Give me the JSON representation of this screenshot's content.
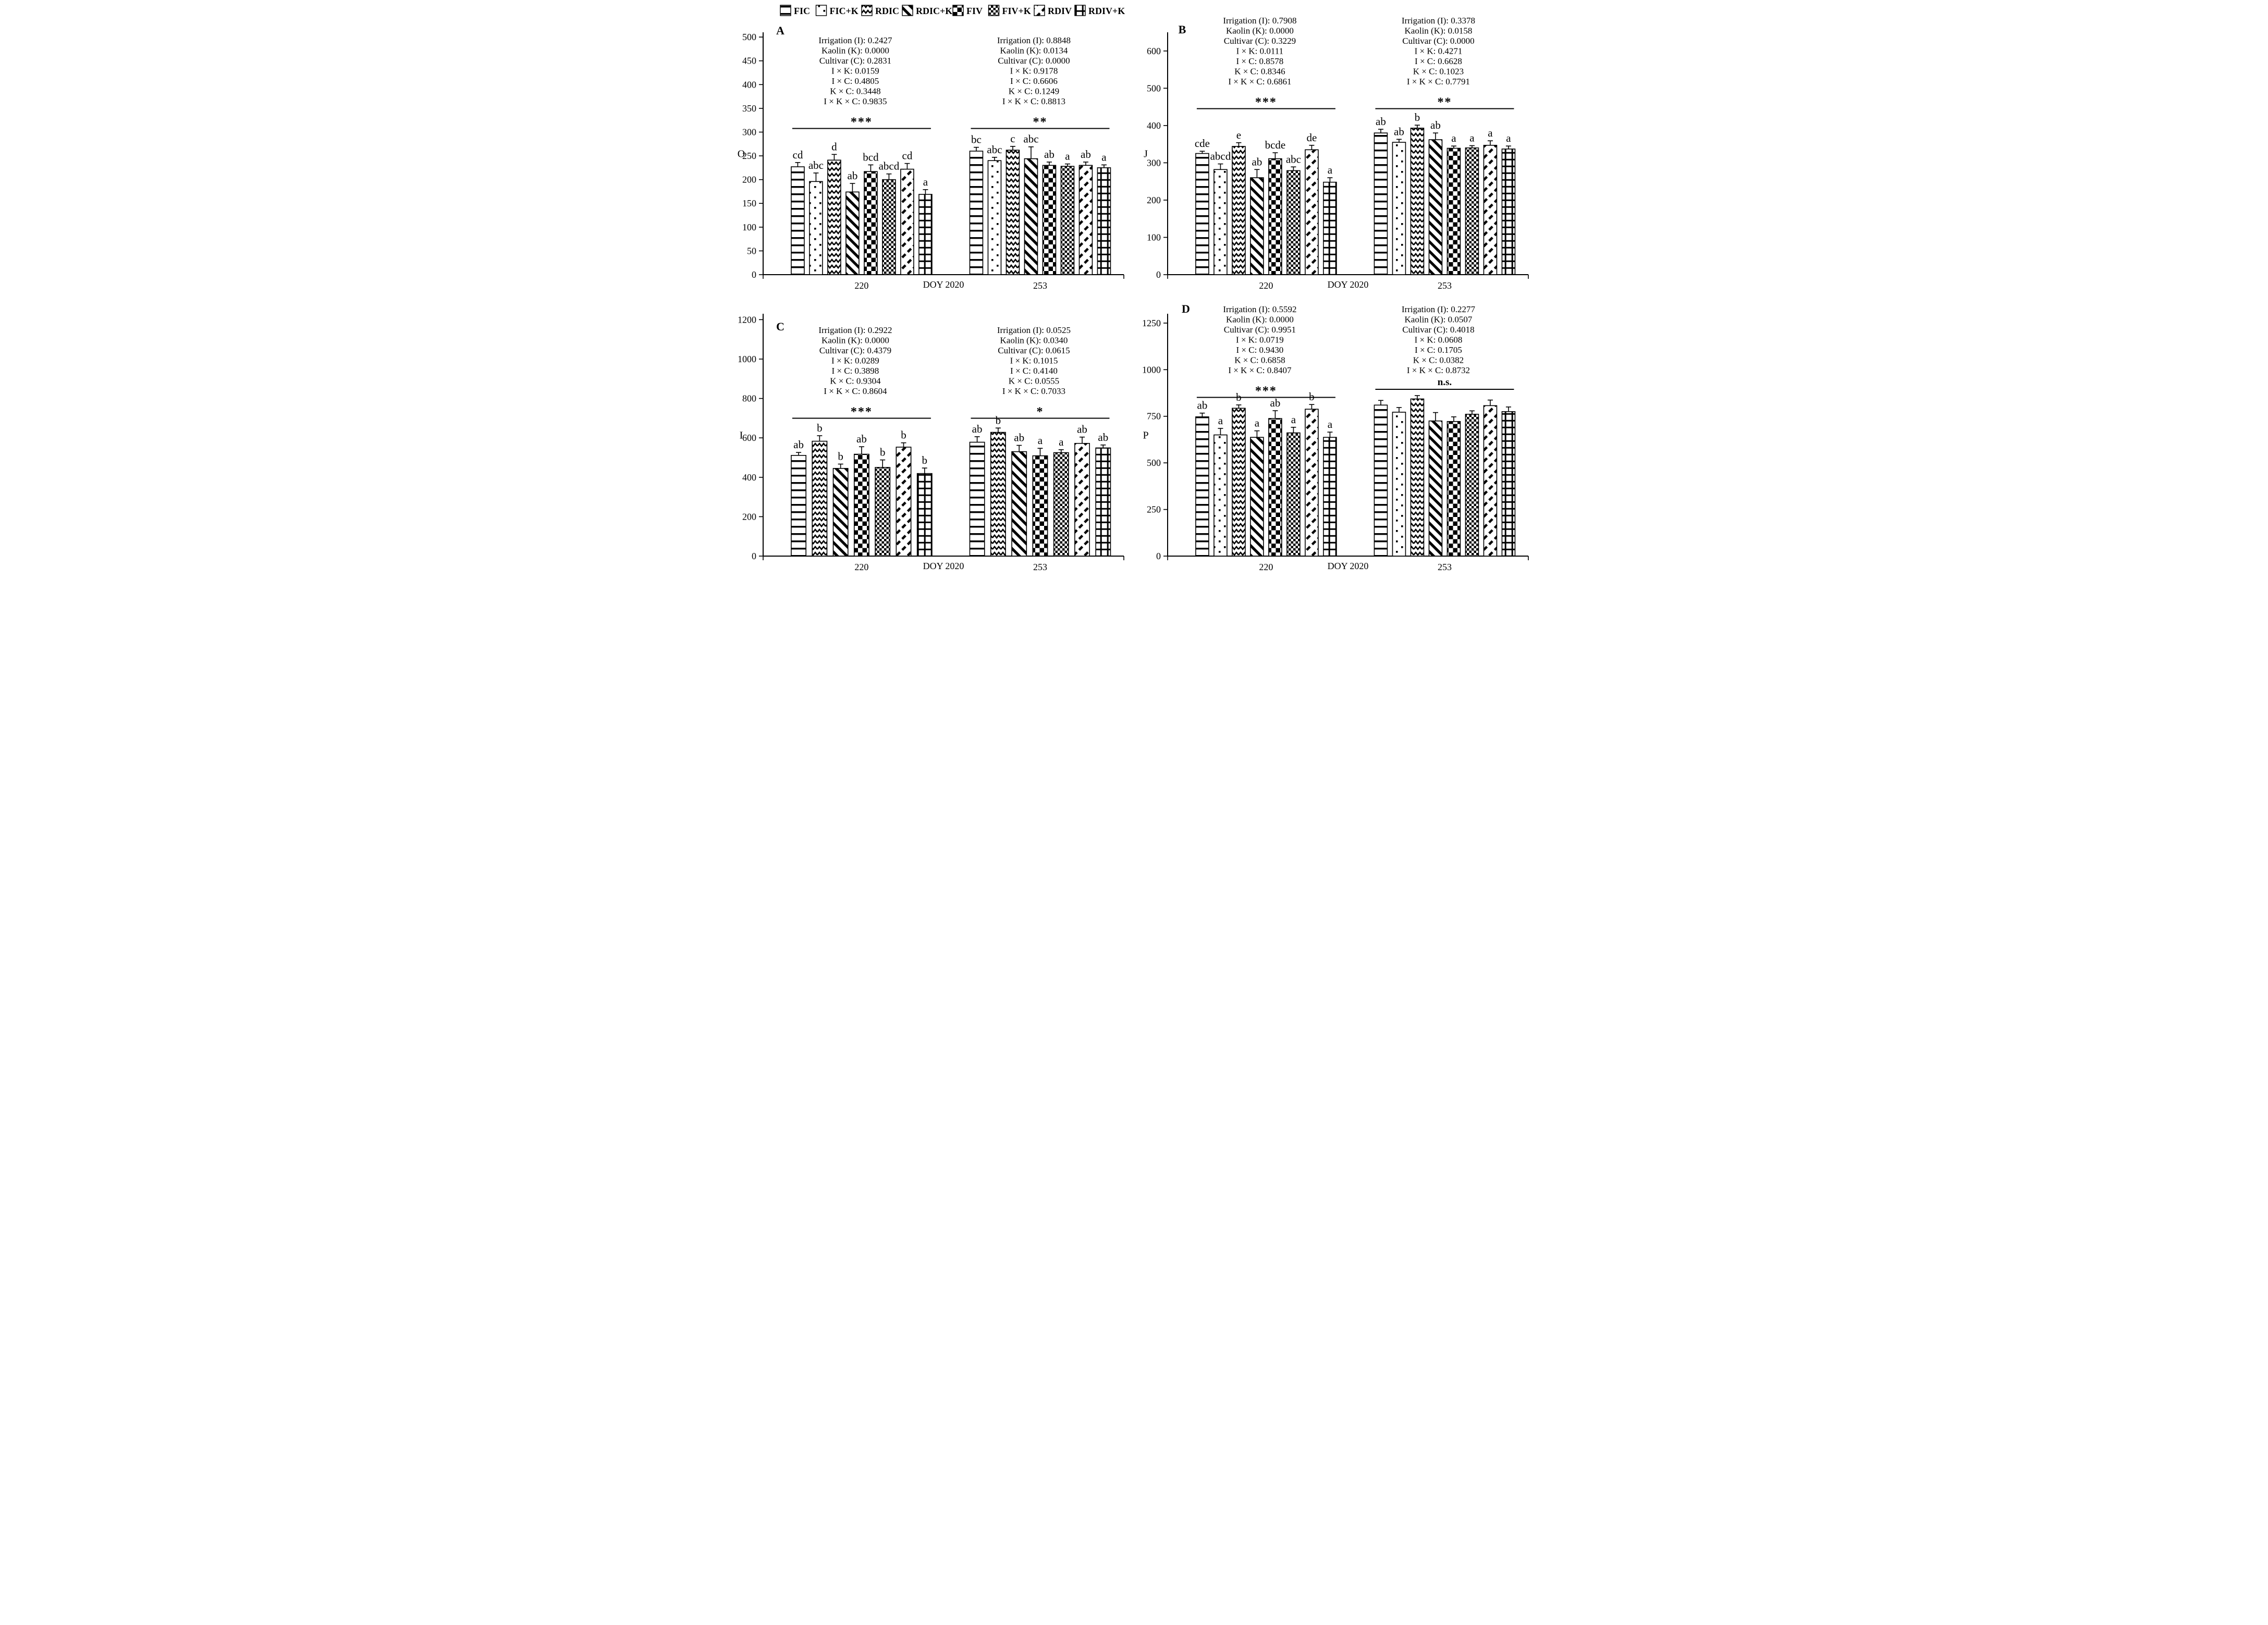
{
  "figure": {
    "x_axis_title": "DOY 2020",
    "group_labels": [
      "220",
      "253"
    ]
  },
  "legend": {
    "items": [
      {
        "label": "FIC",
        "pattern": "hlines"
      },
      {
        "label": "FIC+K",
        "pattern": "dots"
      },
      {
        "label": "RDIC",
        "pattern": "chevron"
      },
      {
        "label": "RDIC+K",
        "pattern": "diag"
      },
      {
        "label": "FIV",
        "pattern": "checker"
      },
      {
        "label": "FIV+K",
        "pattern": "finecheck"
      },
      {
        "label": "RDIV",
        "pattern": "diagdash"
      },
      {
        "label": "RDIV+K",
        "pattern": "grid"
      }
    ]
  },
  "chart_data": [
    {
      "type": "bar",
      "panel": "A",
      "ylabel": "O",
      "ymax_tick": 500,
      "ytick_step": 50,
      "axis_max": 510,
      "categories": [
        "220",
        "253"
      ],
      "x_axis_label": "DOY 2020",
      "groups": [
        {
          "category": "220",
          "significance": "***",
          "stats_lines": [
            "Irrigation (I): 0.2427",
            "Kaolin (K): 0.0000",
            "Cultivar (C): 0.2831",
            "I × K: 0.0159",
            "I × C: 0.4805",
            "K × C: 0.3448",
            "I × K × C: 0.9835"
          ],
          "bars": [
            {
              "treatment": "FIC",
              "pattern": "hlines",
              "value": 227,
              "error": 9,
              "letter": "cd"
            },
            {
              "treatment": "FIC+K",
              "pattern": "dots",
              "value": 196,
              "error": 18,
              "letter": "abc"
            },
            {
              "treatment": "RDIC",
              "pattern": "chevron",
              "value": 241,
              "error": 12,
              "letter": "d"
            },
            {
              "treatment": "RDIC+K",
              "pattern": "diag",
              "value": 174,
              "error": 18,
              "letter": "ab"
            },
            {
              "treatment": "FIV",
              "pattern": "checker",
              "value": 217,
              "error": 14,
              "letter": "bcd"
            },
            {
              "treatment": "FIV+K",
              "pattern": "finecheck",
              "value": 200,
              "error": 12,
              "letter": "abcd"
            },
            {
              "treatment": "RDIV",
              "pattern": "diagdash",
              "value": 222,
              "error": 12,
              "letter": "cd"
            },
            {
              "treatment": "RDIV+K",
              "pattern": "grid",
              "value": 169,
              "error": 10,
              "letter": "a"
            }
          ]
        },
        {
          "category": "253",
          "significance": "**",
          "stats_lines": [
            "Irrigation (I): 0.8848",
            "Kaolin (K): 0.0134",
            "Cultivar (C): 0.0000",
            "I × K: 0.9178",
            "I × C: 0.6606",
            "K × C: 0.1249",
            "I × K × C: 0.8813"
          ],
          "bars": [
            {
              "treatment": "FIC",
              "pattern": "hlines",
              "value": 260,
              "error": 8,
              "letter": "bc"
            },
            {
              "treatment": "FIC+K",
              "pattern": "dots",
              "value": 240,
              "error": 7,
              "letter": "abc"
            },
            {
              "treatment": "RDIC",
              "pattern": "chevron",
              "value": 262,
              "error": 8,
              "letter": "c"
            },
            {
              "treatment": "RDIC+K",
              "pattern": "diag",
              "value": 244,
              "error": 25,
              "letter": "abc"
            },
            {
              "treatment": "FIV",
              "pattern": "checker",
              "value": 230,
              "error": 7,
              "letter": "ab"
            },
            {
              "treatment": "FIV+K",
              "pattern": "finecheck",
              "value": 228,
              "error": 5,
              "letter": "a"
            },
            {
              "treatment": "RDIV",
              "pattern": "diagdash",
              "value": 230,
              "error": 7,
              "letter": "ab"
            },
            {
              "treatment": "RDIV+K",
              "pattern": "grid",
              "value": 225,
              "error": 6,
              "letter": "a"
            }
          ]
        }
      ]
    },
    {
      "type": "bar",
      "panel": "B",
      "ylabel": "J",
      "ymax_tick": 600,
      "ytick_step": 100,
      "axis_max": 650,
      "categories": [
        "220",
        "253"
      ],
      "x_axis_label": "DOY 2020",
      "groups": [
        {
          "category": "220",
          "significance": "***",
          "stats_lines": [
            "Irrigation (I): 0.7908",
            "Kaolin (K): 0.0000",
            "Cultivar (C): 0.3229",
            "I × K: 0.0111",
            "I × C: 0.8578",
            "K × C: 0.8346",
            "I × K × C: 0.6861"
          ],
          "bars": [
            {
              "treatment": "FIC",
              "pattern": "hlines",
              "value": 325,
              "error": 6,
              "letter": "cde"
            },
            {
              "treatment": "FIC+K",
              "pattern": "dots",
              "value": 282,
              "error": 15,
              "letter": "abcd"
            },
            {
              "treatment": "RDIC",
              "pattern": "chevron",
              "value": 344,
              "error": 10,
              "letter": "e"
            },
            {
              "treatment": "RDIC+K",
              "pattern": "diag",
              "value": 260,
              "error": 22,
              "letter": "ab"
            },
            {
              "treatment": "FIV",
              "pattern": "checker",
              "value": 311,
              "error": 16,
              "letter": "bcde"
            },
            {
              "treatment": "FIV+K",
              "pattern": "finecheck",
              "value": 279,
              "error": 10,
              "letter": "abc"
            },
            {
              "treatment": "RDIV",
              "pattern": "diagdash",
              "value": 335,
              "error": 12,
              "letter": "de"
            },
            {
              "treatment": "RDIV+K",
              "pattern": "grid",
              "value": 248,
              "error": 12,
              "letter": "a"
            }
          ]
        },
        {
          "category": "253",
          "significance": "**",
          "stats_lines": [
            "Irrigation (I): 0.3378",
            "Kaolin (K): 0.0158",
            "Cultivar (C): 0.0000",
            "I × K: 0.4271",
            "I × C: 0.6628",
            "K × C: 0.1023",
            "I × K × C: 0.7791"
          ],
          "bars": [
            {
              "treatment": "FIC",
              "pattern": "hlines",
              "value": 380,
              "error": 10,
              "letter": "ab"
            },
            {
              "treatment": "FIC+K",
              "pattern": "dots",
              "value": 355,
              "error": 8,
              "letter": "ab"
            },
            {
              "treatment": "RDIC",
              "pattern": "chevron",
              "value": 393,
              "error": 8,
              "letter": "b"
            },
            {
              "treatment": "RDIC+K",
              "pattern": "diag",
              "value": 362,
              "error": 18,
              "letter": "ab"
            },
            {
              "treatment": "FIV",
              "pattern": "checker",
              "value": 339,
              "error": 6,
              "letter": "a"
            },
            {
              "treatment": "FIV+K",
              "pattern": "finecheck",
              "value": 340,
              "error": 6,
              "letter": "a"
            },
            {
              "treatment": "RDIV",
              "pattern": "diagdash",
              "value": 347,
              "error": 12,
              "letter": "a"
            },
            {
              "treatment": "RDIV+K",
              "pattern": "grid",
              "value": 337,
              "error": 8,
              "letter": "a"
            }
          ]
        }
      ]
    },
    {
      "type": "bar",
      "panel": "C",
      "ylabel": "I",
      "ymax_tick": 1200,
      "ytick_step": 200,
      "axis_max": 1230,
      "categories": [
        "220",
        "253"
      ],
      "x_axis_label": "DOY 2020",
      "groups": [
        {
          "category": "220",
          "significance": "***",
          "stats_lines": [
            "Irrigation (I): 0.2922",
            "Kaolin (K): 0.0000",
            "Cultivar (C): 0.4379",
            "I × K: 0.0289",
            "I × C: 0.3898",
            "K × C: 0.9304",
            "I × K × C: 0.8604"
          ],
          "bars": [
            {
              "treatment": "FIC",
              "pattern": "hlines",
              "value": 511,
              "error": 15,
              "letter": "ab"
            },
            {
              "treatment": "RDIC",
              "pattern": "chevron",
              "value": 583,
              "error": 28,
              "letter": "b"
            },
            {
              "treatment": "RDIC+K",
              "pattern": "diag",
              "value": 445,
              "error": 22,
              "letter": "b"
            },
            {
              "treatment": "FIV",
              "pattern": "checker",
              "value": 517,
              "error": 38,
              "letter": "ab"
            },
            {
              "treatment": "FIV+K",
              "pattern": "finecheck",
              "value": 450,
              "error": 38,
              "letter": "b"
            },
            {
              "treatment": "RDIV",
              "pattern": "diagdash",
              "value": 553,
              "error": 22,
              "letter": "b"
            },
            {
              "treatment": "RDIV+K",
              "pattern": "grid",
              "value": 419,
              "error": 28,
              "letter": "b"
            }
          ]
        },
        {
          "category": "253",
          "significance": "*",
          "stats_lines": [
            "Irrigation (I): 0.0525",
            "Kaolin (K): 0.0340",
            "Cultivar (C): 0.0615",
            "I × K: 0.1015",
            "I × C: 0.4140",
            "K × C: 0.0555",
            "I × K × C: 0.7033"
          ],
          "bars": [
            {
              "treatment": "FIC",
              "pattern": "hlines",
              "value": 578,
              "error": 28,
              "letter": "ab"
            },
            {
              "treatment": "RDIC",
              "pattern": "chevron",
              "value": 628,
              "error": 22,
              "letter": "b"
            },
            {
              "treatment": "RDIC+K",
              "pattern": "diag",
              "value": 530,
              "error": 32,
              "letter": "ab"
            },
            {
              "treatment": "FIV",
              "pattern": "checker",
              "value": 509,
              "error": 38,
              "letter": "a"
            },
            {
              "treatment": "FIV+K",
              "pattern": "finecheck",
              "value": 525,
              "error": 15,
              "letter": "a"
            },
            {
              "treatment": "RDIV",
              "pattern": "diagdash",
              "value": 572,
              "error": 32,
              "letter": "ab"
            },
            {
              "treatment": "RDIV+K",
              "pattern": "grid",
              "value": 549,
              "error": 15,
              "letter": "ab"
            }
          ]
        }
      ]
    },
    {
      "type": "bar",
      "panel": "D",
      "ylabel": "P",
      "ymax_tick": 1250,
      "ytick_step": 250,
      "axis_max": 1300,
      "categories": [
        "220",
        "253"
      ],
      "x_axis_label": "DOY 2020",
      "groups": [
        {
          "category": "220",
          "significance": "***",
          "stats_lines": [
            "Irrigation (I): 0.5592",
            "Kaolin (K): 0.0000",
            "Cultivar (C): 0.9951",
            "I × K: 0.0719",
            "I × C: 0.9430",
            "K × C: 0.6858",
            "I × K × C: 0.8407"
          ],
          "bars": [
            {
              "treatment": "FIC",
              "pattern": "hlines",
              "value": 747,
              "error": 20,
              "letter": "ab"
            },
            {
              "treatment": "FIC+K",
              "pattern": "dots",
              "value": 650,
              "error": 35,
              "letter": "a"
            },
            {
              "treatment": "RDIC",
              "pattern": "chevron",
              "value": 793,
              "error": 18,
              "letter": "b"
            },
            {
              "treatment": "RDIC+K",
              "pattern": "diag",
              "value": 637,
              "error": 35,
              "letter": "a"
            },
            {
              "treatment": "FIV",
              "pattern": "checker",
              "value": 738,
              "error": 42,
              "letter": "ab"
            },
            {
              "treatment": "FIV+K",
              "pattern": "finecheck",
              "value": 661,
              "error": 30,
              "letter": "a"
            },
            {
              "treatment": "RDIV",
              "pattern": "diagdash",
              "value": 788,
              "error": 25,
              "letter": "b"
            },
            {
              "treatment": "RDIV+K",
              "pattern": "grid",
              "value": 637,
              "error": 28,
              "letter": "a"
            }
          ]
        },
        {
          "category": "253",
          "significance": "n.s.",
          "stats_lines": [
            "Irrigation (I): 0.2277",
            "Kaolin (K): 0.0507",
            "Cultivar (C): 0.4018",
            "I × K: 0.0608",
            "I × C: 0.1705",
            "K × C: 0.0382",
            "I × K × C: 0.8732"
          ],
          "bars": [
            {
              "treatment": "FIC",
              "pattern": "hlines",
              "value": 810,
              "error": 25,
              "letter": ""
            },
            {
              "treatment": "FIC+K",
              "pattern": "dots",
              "value": 772,
              "error": 25,
              "letter": ""
            },
            {
              "treatment": "RDIC",
              "pattern": "chevron",
              "value": 843,
              "error": 18,
              "letter": ""
            },
            {
              "treatment": "RDIC+K",
              "pattern": "diag",
              "value": 725,
              "error": 45,
              "letter": ""
            },
            {
              "treatment": "FIV",
              "pattern": "checker",
              "value": 722,
              "error": 25,
              "letter": ""
            },
            {
              "treatment": "FIV+K",
              "pattern": "finecheck",
              "value": 761,
              "error": 18,
              "letter": ""
            },
            {
              "treatment": "RDIV",
              "pattern": "diagdash",
              "value": 807,
              "error": 30,
              "letter": ""
            },
            {
              "treatment": "RDIV+K",
              "pattern": "grid",
              "value": 775,
              "error": 25,
              "letter": ""
            }
          ]
        }
      ]
    }
  ]
}
